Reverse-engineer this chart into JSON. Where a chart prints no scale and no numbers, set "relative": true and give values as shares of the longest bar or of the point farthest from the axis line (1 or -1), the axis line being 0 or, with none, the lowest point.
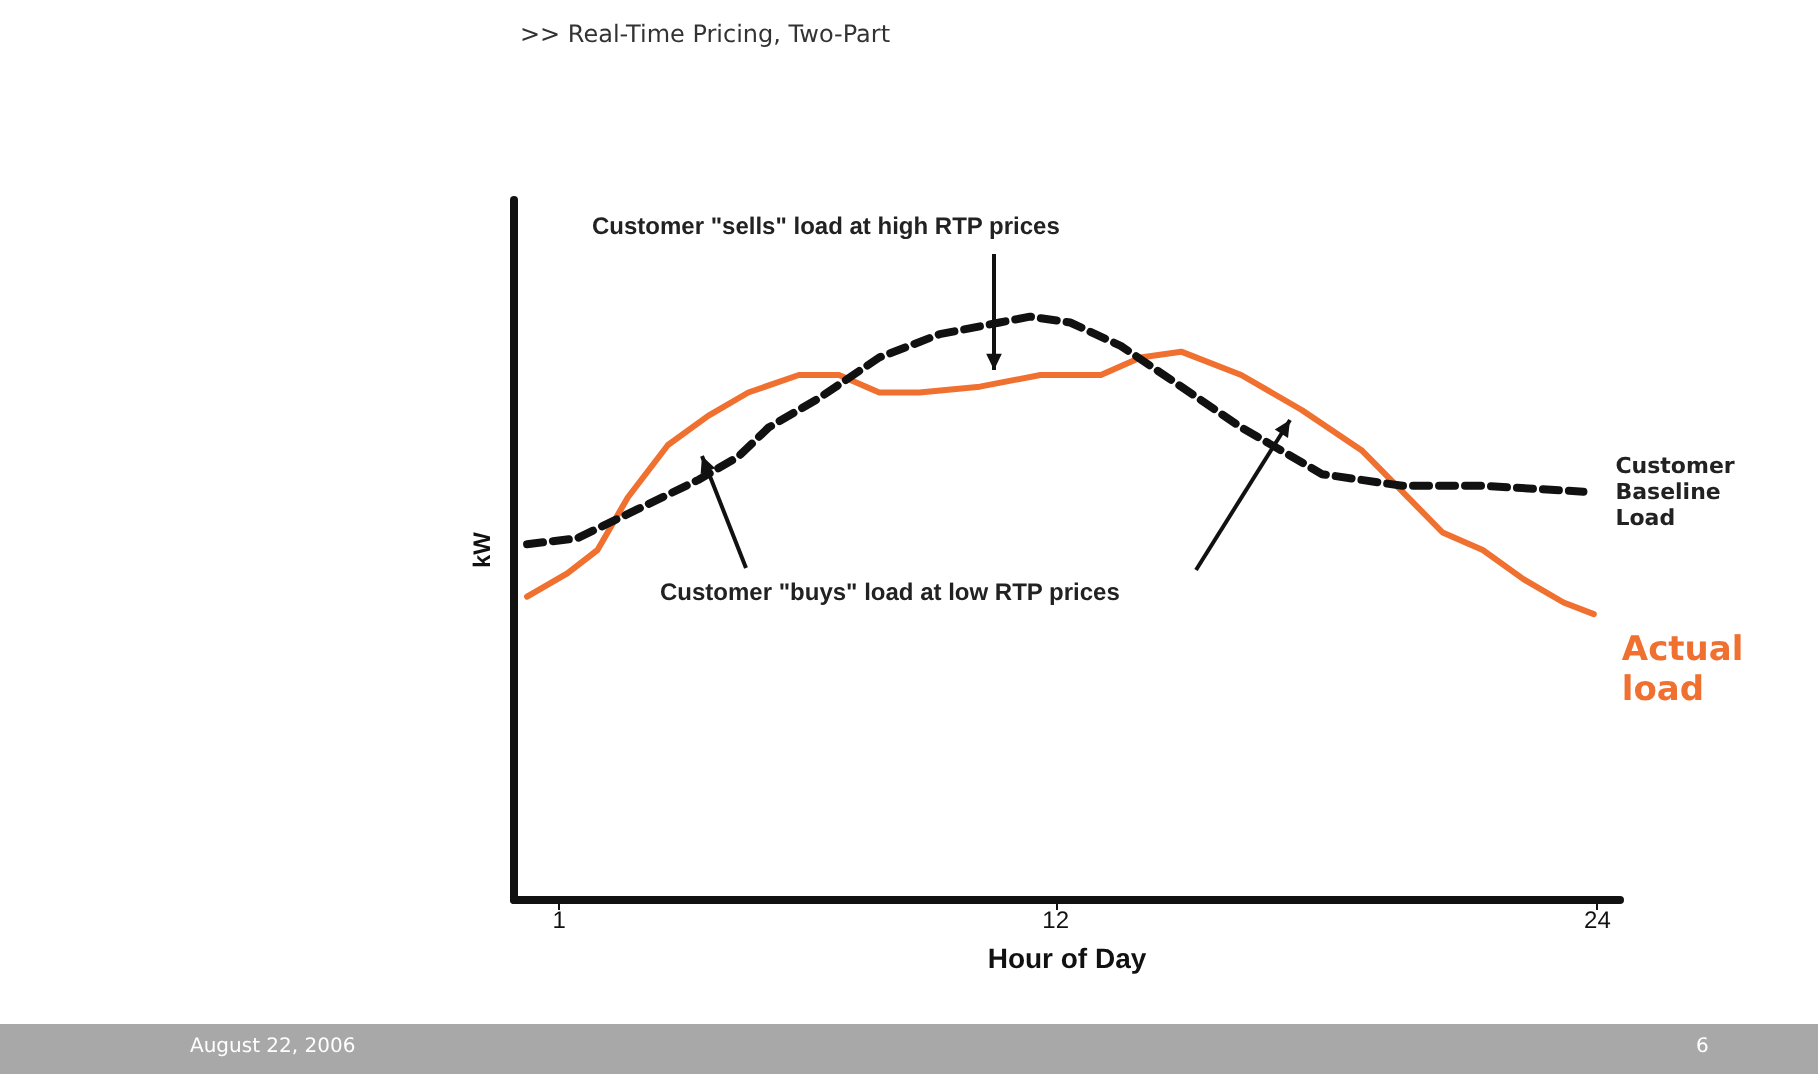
{
  "chart_data": {
    "type": "line",
    "title": ">> Real-Time Pricing, Two-Part",
    "xlabel": "Hour of Day",
    "ylabel": "kW",
    "relative": true,
    "xlim": [
      0,
      24.5
    ],
    "xticks": [
      1,
      12,
      24
    ],
    "grid": false,
    "legend": false,
    "marker": "none",
    "annotations": [
      "Customer \"sells\" load at high RTP prices",
      "Customer \"buys\" load at low RTP prices",
      "August 22, 2006",
      "6"
    ],
    "series": [
      {
        "name": "Actual load",
        "color": "#f07030",
        "line_style": "solid",
        "x": [
          0.29,
          1.18,
          1.85,
          2.52,
          3.41,
          4.3,
          5.19,
          6.31,
          7.2,
          8.09,
          8.98,
          10.32,
          11.66,
          13.0,
          13.88,
          14.78,
          16.11,
          17.45,
          18.79,
          19.68,
          20.57,
          21.46,
          22.36,
          23.25,
          23.92
        ],
        "values": [
          0.52,
          0.56,
          0.6,
          0.69,
          0.78,
          0.83,
          0.87,
          0.9,
          0.9,
          0.87,
          0.87,
          0.88,
          0.9,
          0.9,
          0.93,
          0.94,
          0.9,
          0.84,
          0.77,
          0.7,
          0.63,
          0.6,
          0.55,
          0.51,
          0.49
        ]
      },
      {
        "name": "Customer Baseline Load",
        "color": "#111111",
        "line_style": "dashed",
        "x": [
          0.29,
          1.4,
          2.74,
          4.08,
          4.97,
          5.64,
          6.75,
          8.09,
          9.43,
          10.76,
          11.43,
          12.32,
          13.44,
          14.78,
          16.11,
          17.01,
          17.9,
          19.68,
          21.46,
          23.69
        ],
        "values": [
          0.61,
          0.62,
          0.67,
          0.72,
          0.76,
          0.81,
          0.86,
          0.93,
          0.97,
          0.99,
          1,
          0.99,
          0.95,
          0.88,
          0.81,
          0.77,
          0.73,
          0.71,
          0.71,
          0.7
        ]
      }
    ]
  }
}
